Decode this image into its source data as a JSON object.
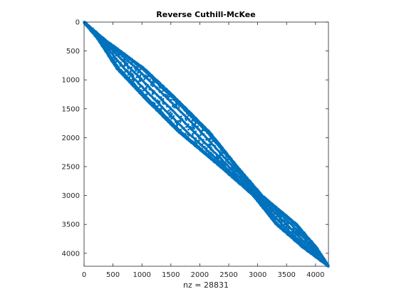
{
  "chart_data": {
    "type": "scatter",
    "title": "Reverse Cuthill-McKee",
    "xlabel_prefix": "nz = ",
    "nz": 28831,
    "n": 4224,
    "xlim": [
      0,
      4224
    ],
    "ylim": [
      0,
      4224
    ],
    "y_reversed": true,
    "x_ticks": [
      0,
      500,
      1000,
      1500,
      2000,
      2500,
      3000,
      3500,
      4000
    ],
    "y_ticks": [
      0,
      500,
      1000,
      1500,
      2000,
      2500,
      3000,
      3500,
      4000
    ],
    "marker_color": "#0072BD",
    "bandwidth_profile": [
      {
        "row": 0,
        "half_width": 10
      },
      {
        "row": 300,
        "half_width": 60
      },
      {
        "row": 800,
        "half_width": 240
      },
      {
        "row": 1300,
        "half_width": 270
      },
      {
        "row": 1900,
        "half_width": 270
      },
      {
        "row": 2500,
        "half_width": 150
      },
      {
        "row": 3000,
        "half_width": 80
      },
      {
        "row": 3500,
        "half_width": 180
      },
      {
        "row": 3900,
        "half_width": 120
      },
      {
        "row": 4224,
        "half_width": 8
      }
    ]
  }
}
